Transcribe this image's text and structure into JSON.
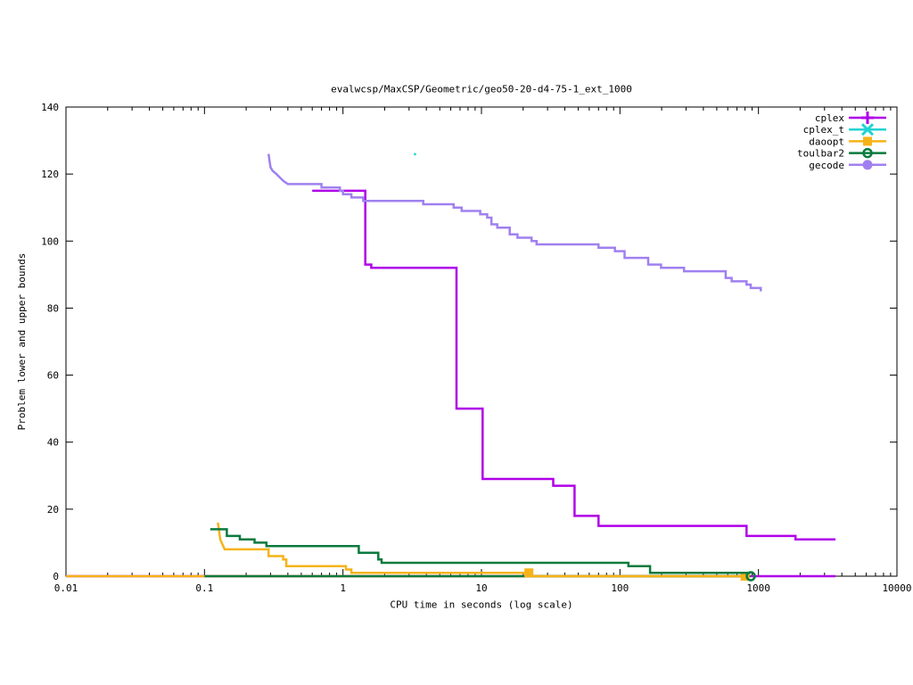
{
  "chart_data": {
    "type": "line",
    "title": "evalwcsp/MaxCSP/Geometric/geo50-20-d4-75-1_ext_1000",
    "xlabel": "CPU time in seconds (log scale)",
    "ylabel": "Problem lower and upper bounds",
    "x_scale": "log",
    "xlim": [
      0.01,
      10000
    ],
    "ylim": [
      0,
      140
    ],
    "x_ticks": [
      0.01,
      0.1,
      1,
      10,
      100,
      1000,
      10000
    ],
    "x_tick_labels": [
      "0.01",
      "0.1",
      "1",
      "10",
      "100",
      "1000",
      "10000"
    ],
    "y_ticks": [
      0,
      20,
      40,
      60,
      80,
      100,
      120,
      140
    ],
    "y_tick_labels": [
      "0",
      "20",
      "40",
      "60",
      "80",
      "100",
      "120",
      "140"
    ],
    "grid": false,
    "legend_position": "top-right",
    "series": [
      {
        "name": "cplex",
        "color": "#b000e8",
        "marker": "plus",
        "upper": [
          [
            0.6,
            115
          ],
          [
            1.45,
            115
          ],
          [
            1.45,
            93
          ],
          [
            1.6,
            93
          ],
          [
            1.6,
            92
          ],
          [
            6.6,
            92
          ],
          [
            6.6,
            50
          ],
          [
            10.2,
            50
          ],
          [
            10.2,
            29
          ],
          [
            33,
            29
          ],
          [
            33,
            27
          ],
          [
            47,
            27
          ],
          [
            47,
            18
          ],
          [
            70,
            18
          ],
          [
            70,
            15
          ],
          [
            820,
            15
          ],
          [
            820,
            12
          ],
          [
            1850,
            12
          ],
          [
            1850,
            11
          ],
          [
            3600,
            11
          ]
        ],
        "lower": [
          [
            0.01,
            0
          ],
          [
            3600,
            0
          ]
        ],
        "marker_points": []
      },
      {
        "name": "cplex_t",
        "color": "#22d3d3",
        "marker": "cross",
        "upper": [
          [
            3.3,
            126
          ]
        ],
        "lower": [],
        "marker_points": []
      },
      {
        "name": "daoopt",
        "color": "#f6b318",
        "marker": "square",
        "upper": [
          [
            0.125,
            16
          ],
          [
            0.13,
            11
          ],
          [
            0.14,
            8
          ],
          [
            0.29,
            8
          ],
          [
            0.29,
            6
          ],
          [
            0.37,
            6
          ],
          [
            0.37,
            5
          ],
          [
            0.39,
            5
          ],
          [
            0.39,
            3
          ],
          [
            1.05,
            3
          ],
          [
            1.05,
            2
          ],
          [
            1.15,
            2
          ],
          [
            1.15,
            1
          ],
          [
            22,
            1
          ],
          [
            22,
            0
          ],
          [
            800,
            0
          ]
        ],
        "lower": [
          [
            0.01,
            0
          ],
          [
            800,
            0
          ]
        ],
        "marker_points": [
          [
            22,
            1
          ],
          [
            800,
            0
          ]
        ]
      },
      {
        "name": "toulbar2",
        "color": "#0b7a3e",
        "marker": "circle",
        "upper": [
          [
            0.11,
            14
          ],
          [
            0.145,
            14
          ],
          [
            0.145,
            12
          ],
          [
            0.18,
            12
          ],
          [
            0.18,
            11
          ],
          [
            0.23,
            11
          ],
          [
            0.23,
            10
          ],
          [
            0.28,
            10
          ],
          [
            0.28,
            9
          ],
          [
            1.3,
            9
          ],
          [
            1.3,
            7
          ],
          [
            1.8,
            7
          ],
          [
            1.8,
            5
          ],
          [
            1.9,
            5
          ],
          [
            1.9,
            4
          ],
          [
            115,
            4
          ],
          [
            115,
            3
          ],
          [
            165,
            3
          ],
          [
            165,
            1
          ],
          [
            880,
            1
          ]
        ],
        "lower": [
          [
            0.1,
            0
          ],
          [
            880,
            0
          ]
        ],
        "marker_points": [
          [
            880,
            0
          ]
        ]
      },
      {
        "name": "gecode",
        "color": "#a080f0",
        "marker": "circle-filled",
        "upper": [
          [
            0.29,
            126
          ],
          [
            0.295,
            124
          ],
          [
            0.3,
            122
          ],
          [
            0.31,
            121
          ],
          [
            0.33,
            120
          ],
          [
            0.35,
            119
          ],
          [
            0.37,
            118
          ],
          [
            0.4,
            117
          ],
          [
            0.7,
            117
          ],
          [
            0.7,
            116
          ],
          [
            0.95,
            116
          ],
          [
            0.95,
            115
          ],
          [
            1.0,
            115
          ],
          [
            1.0,
            114
          ],
          [
            1.15,
            114
          ],
          [
            1.15,
            113
          ],
          [
            1.4,
            113
          ],
          [
            1.4,
            112
          ],
          [
            3.8,
            112
          ],
          [
            3.8,
            111
          ],
          [
            6.3,
            111
          ],
          [
            6.3,
            110
          ],
          [
            7.2,
            110
          ],
          [
            7.2,
            109
          ],
          [
            9.8,
            109
          ],
          [
            9.8,
            108
          ],
          [
            11.0,
            108
          ],
          [
            11.0,
            107
          ],
          [
            11.8,
            107
          ],
          [
            11.8,
            105
          ],
          [
            13.0,
            105
          ],
          [
            13.0,
            104
          ],
          [
            16.0,
            104
          ],
          [
            16.0,
            102
          ],
          [
            18.2,
            102
          ],
          [
            18.2,
            101
          ],
          [
            23.0,
            101
          ],
          [
            23.0,
            100
          ],
          [
            25.0,
            100
          ],
          [
            25.0,
            99
          ],
          [
            70.0,
            99
          ],
          [
            70.0,
            98
          ],
          [
            92.0,
            98
          ],
          [
            92.0,
            97
          ],
          [
            108.0,
            97
          ],
          [
            108.0,
            95
          ],
          [
            160.0,
            95
          ],
          [
            160.0,
            93
          ],
          [
            198.0,
            93
          ],
          [
            198.0,
            92
          ],
          [
            290.0,
            92
          ],
          [
            290.0,
            91
          ],
          [
            580.0,
            91
          ],
          [
            580.0,
            89
          ],
          [
            640.0,
            89
          ],
          [
            640.0,
            88
          ],
          [
            820.0,
            88
          ],
          [
            820.0,
            87
          ],
          [
            880.0,
            87
          ],
          [
            880.0,
            86
          ],
          [
            1040.0,
            86
          ],
          [
            1040.0,
            85
          ]
        ],
        "lower": [],
        "marker_points": []
      }
    ]
  }
}
